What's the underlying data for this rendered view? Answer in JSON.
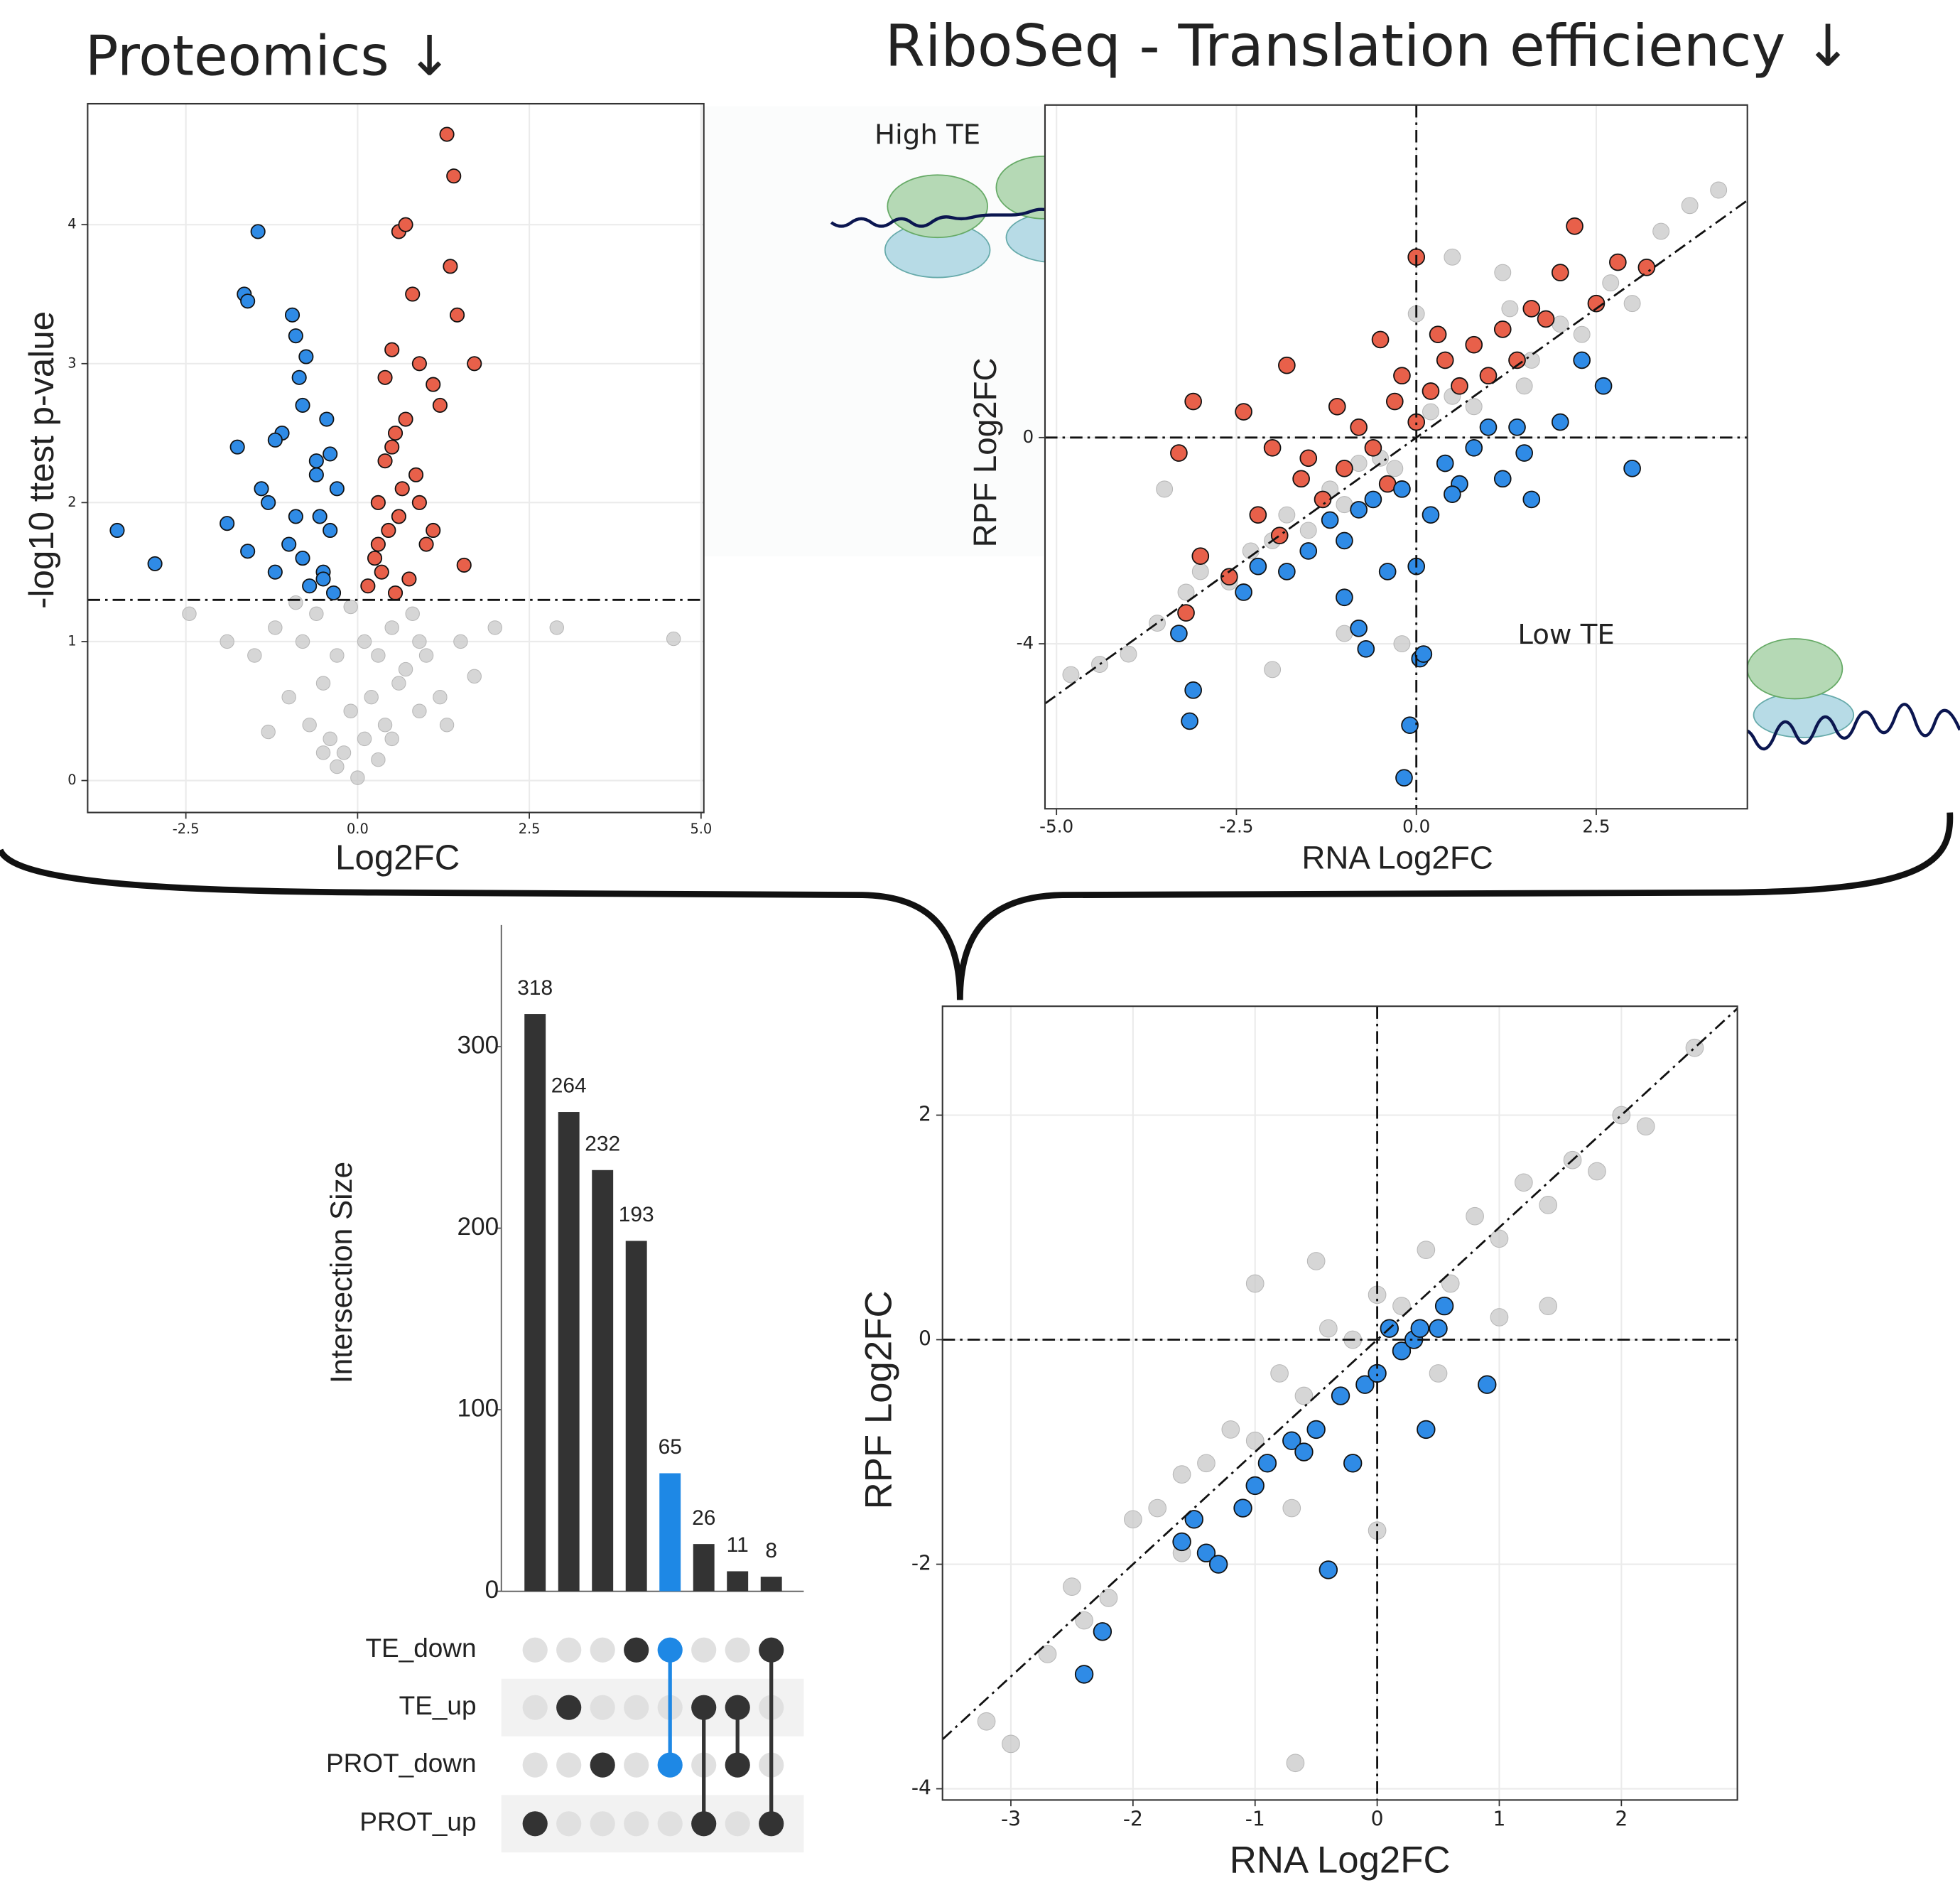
{
  "chart_data": [
    {
      "type": "scatter",
      "title": "Proteomics ↓",
      "x_label": "Log2FC",
      "y_label": "-log10 ttest p-value",
      "xlim": [
        -3.93,
        5.04
      ],
      "ylim": [
        -0.23,
        4.87
      ],
      "xticks": [
        -2.5,
        {
          "value": 0,
          "label": "0.0"
        },
        2.5,
        {
          "value": 5,
          "label": "5.0"
        }
      ],
      "yticks": [
        0,
        1,
        2,
        3,
        4
      ],
      "grid": true,
      "hline": 1.3,
      "series": [
        {
          "color": "#c8c8c8",
          "x": [
            -2.45,
            -1.9,
            -1.5,
            -1.2,
            -1.0,
            -0.8,
            -0.7,
            -0.6,
            -0.5,
            -0.4,
            -0.3,
            -0.2,
            -0.1,
            0,
            0.1,
            0.2,
            0.3,
            0.4,
            0.5,
            0.6,
            0.7,
            0.8,
            0.9,
            1.0,
            1.2,
            1.5,
            1.7,
            2.0,
            2.9,
            4.6,
            -0.5,
            -0.3,
            -0.1,
            0.1,
            0.3,
            0.5,
            -0.9,
            0.9,
            -1.3,
            1.3
          ],
          "values": [
            1.2,
            1.0,
            0.9,
            1.1,
            0.6,
            1.0,
            0.4,
            1.2,
            0.7,
            0.3,
            0.9,
            0.2,
            0.5,
            0.02,
            0.3,
            0.6,
            0.9,
            0.4,
            1.1,
            0.7,
            0.8,
            1.2,
            0.5,
            0.9,
            0.6,
            1.0,
            0.75,
            1.1,
            1.1,
            1.02,
            0.2,
            0.1,
            1.25,
            1.0,
            0.15,
            0.3,
            1.28,
            1.0,
            0.35,
            0.4
          ]
        },
        {
          "color": "#2f8be6",
          "x": [
            -3.5,
            -2.95,
            -1.9,
            -1.75,
            -1.65,
            -1.6,
            -1.45,
            -1.4,
            -1.3,
            -1.2,
            -1.1,
            -1.0,
            -0.95,
            -0.9,
            -0.85,
            -0.8,
            -0.75,
            -0.7,
            -0.6,
            -0.55,
            -0.5,
            -0.45,
            -0.4,
            -0.35,
            -0.3,
            -0.9,
            -1.2,
            -0.6,
            -0.8,
            -0.5,
            -1.6,
            -0.4
          ],
          "values": [
            1.8,
            1.56,
            1.85,
            2.4,
            3.5,
            3.45,
            3.95,
            2.1,
            2.0,
            1.5,
            2.5,
            1.7,
            3.35,
            3.2,
            2.9,
            2.7,
            3.05,
            1.4,
            2.3,
            1.9,
            1.5,
            2.6,
            1.8,
            1.35,
            2.1,
            1.9,
            2.45,
            2.2,
            1.6,
            1.45,
            1.65,
            2.35
          ]
        },
        {
          "color": "#e8604a",
          "x": [
            0.15,
            0.25,
            0.3,
            0.35,
            0.4,
            0.45,
            0.5,
            0.55,
            0.6,
            0.65,
            0.7,
            0.75,
            0.8,
            0.85,
            0.9,
            1.0,
            1.1,
            1.2,
            1.3,
            1.35,
            1.4,
            1.45,
            1.55,
            1.7,
            0.5,
            0.6,
            0.4,
            0.7,
            0.3,
            0.55,
            0.9,
            1.1
          ],
          "values": [
            1.4,
            1.6,
            2.0,
            1.5,
            2.3,
            1.8,
            3.1,
            2.5,
            3.95,
            2.1,
            4.0,
            1.45,
            3.5,
            2.2,
            3.0,
            1.7,
            2.85,
            2.7,
            4.65,
            3.7,
            4.35,
            3.35,
            1.55,
            3.0,
            2.4,
            1.9,
            2.9,
            2.6,
            1.7,
            1.35,
            2.0,
            1.8
          ]
        }
      ]
    },
    {
      "type": "scatter",
      "title": "RiboSeq - Translation efficiency ↓",
      "x_label": "RNA Log2FC",
      "y_label": "RPF Log2FC",
      "annotations": [
        "High TE",
        "Low TE"
      ],
      "xlim": [
        -5.16,
        4.6
      ],
      "ylim": [
        -7.2,
        6.45
      ],
      "xticks": [
        {
          "value": -5,
          "label": "-5.0"
        },
        -2.5,
        {
          "value": 0,
          "label": "0.0"
        },
        2.5
      ],
      "yticks": [
        -4,
        0
      ],
      "grid": true,
      "hline": 0,
      "vline": 0,
      "diagonal": true,
      "series": [
        {
          "color": "#c8c8c8",
          "x": [
            -4.8,
            -4.4,
            -4.0,
            -3.6,
            -3.2,
            -3.0,
            -2.6,
            -2.3,
            -2.0,
            -1.8,
            -1.5,
            -1.2,
            -1.0,
            -0.8,
            -0.5,
            -0.3,
            0,
            0.2,
            0.5,
            0.8,
            1.0,
            1.3,
            1.6,
            2.0,
            2.3,
            2.7,
            3.0,
            3.4,
            3.8,
            4.2,
            -2.0,
            -1.0,
            0.5,
            1.5,
            2.5,
            -3.5,
            -0.2,
            1.2
          ],
          "values": [
            -4.6,
            -4.4,
            -4.2,
            -3.6,
            -3.0,
            -2.6,
            -2.8,
            -2.2,
            -2.0,
            -1.5,
            -1.8,
            -1.0,
            -1.3,
            -0.5,
            -0.4,
            -0.6,
            2.4,
            0.5,
            0.8,
            0.6,
            1.2,
            2.5,
            1.5,
            2.2,
            2.0,
            3.0,
            2.6,
            4.0,
            4.5,
            4.8,
            -4.5,
            -3.8,
            3.5,
            1.0,
            2.6,
            -1.0,
            -4.0,
            3.2
          ]
        },
        {
          "color": "#e8604a",
          "x": [
            -3.1,
            -3.2,
            -3.0,
            -2.6,
            -2.4,
            -2.2,
            -2.0,
            -1.8,
            -1.6,
            -1.5,
            -1.3,
            -1.1,
            -1.0,
            -0.8,
            -0.6,
            -0.5,
            -0.3,
            -0.2,
            0,
            0.2,
            0.4,
            0.6,
            0.8,
            1.0,
            1.2,
            1.4,
            1.6,
            1.8,
            2.0,
            2.2,
            2.5,
            2.8,
            3.2,
            0,
            -0.4,
            0.3,
            -1.9,
            -3.3
          ],
          "values": [
            0.7,
            -3.4,
            -2.3,
            -2.7,
            0.5,
            -1.5,
            -0.2,
            1.4,
            -0.8,
            -0.4,
            -1.2,
            0.6,
            -0.6,
            0.2,
            -0.2,
            1.9,
            0.7,
            1.2,
            3.5,
            0.9,
            1.5,
            1.0,
            1.8,
            1.2,
            2.1,
            1.5,
            2.5,
            2.3,
            3.2,
            4.1,
            2.6,
            3.4,
            3.3,
            0.3,
            -0.9,
            2.0,
            -1.9,
            -0.3
          ]
        },
        {
          "color": "#2f8be6",
          "x": [
            -3.15,
            -3.1,
            -3.3,
            -2.4,
            -2.2,
            -1.8,
            -1.5,
            -1.2,
            -1.0,
            -0.8,
            -0.6,
            -0.4,
            -0.2,
            0,
            0.2,
            0.4,
            0.6,
            0.8,
            1.0,
            1.2,
            1.4,
            1.6,
            2.0,
            2.3,
            2.6,
            3.0,
            -0.17,
            -0.09,
            0.05,
            -0.7,
            -0.8,
            1.5,
            0.5,
            -1.0,
            0.1
          ],
          "values": [
            -5.5,
            -4.9,
            -3.8,
            -3.0,
            -2.5,
            -2.6,
            -2.2,
            -1.6,
            -2.0,
            -1.4,
            -1.2,
            -2.6,
            -1.0,
            -2.5,
            -1.5,
            -0.5,
            -0.9,
            -0.2,
            0.2,
            -0.8,
            0.2,
            -1.2,
            0.3,
            1.5,
            1.0,
            -0.6,
            -6.6,
            -5.58,
            -4.29,
            -4.1,
            -3.7,
            -0.3,
            -1.1,
            -3.1,
            -4.2
          ]
        }
      ]
    },
    {
      "type": "upset",
      "y_label": "Intersection Size",
      "values": [
        318,
        264,
        232,
        193,
        65,
        26,
        11,
        8
      ],
      "ylim": [
        0,
        367
      ],
      "yticks": [
        0,
        100,
        200,
        300
      ],
      "color": "#333333",
      "highlight": 4,
      "highlight_color": "#1e88e5",
      "sets": [
        "TE_down",
        "TE_up",
        "PROT_down",
        "PROT_up"
      ],
      "membership": [
        [
          3
        ],
        [
          1
        ],
        [
          2
        ],
        [
          0
        ],
        [
          0,
          2
        ],
        [
          1,
          3
        ],
        [
          1,
          2
        ],
        [
          0,
          3
        ]
      ]
    },
    {
      "type": "scatter",
      "x_label": "RNA Log2FC",
      "y_label": "RPF Log2FC",
      "xlim": [
        -3.56,
        2.95
      ],
      "ylim": [
        -4.1,
        2.97
      ],
      "xticks": [
        -3,
        -2,
        -1,
        0,
        1,
        2
      ],
      "yticks": [
        -4,
        -2,
        0,
        2
      ],
      "grid": true,
      "hline": 0,
      "vline": 0,
      "diagonal": true,
      "series": [
        {
          "color": "#c8c8c8",
          "x": [
            -3.2,
            -3.0,
            -2.7,
            -2.5,
            -2.2,
            -2.0,
            -1.8,
            -1.6,
            -1.4,
            -1.2,
            -1.0,
            -0.8,
            -0.6,
            -0.4,
            -0.2,
            0,
            0.2,
            0.4,
            0.6,
            0.8,
            1.0,
            1.2,
            1.4,
            1.6,
            1.8,
            2.0,
            2.2,
            2.6,
            -1.6,
            -0.7,
            0,
            1.4,
            -1.0,
            0.5,
            -0.5,
            1.0,
            -2.4,
            -0.67
          ],
          "values": [
            -3.4,
            -3.6,
            -2.8,
            -2.2,
            -2.3,
            -1.6,
            -1.5,
            -1.2,
            -1.1,
            -0.8,
            -0.9,
            -0.3,
            -0.5,
            0.1,
            0.0,
            0.4,
            0.3,
            0.8,
            0.5,
            1.1,
            0.9,
            1.4,
            1.2,
            1.6,
            1.5,
            2.0,
            1.9,
            2.6,
            -1.9,
            -1.5,
            -1.7,
            0.3,
            0.5,
            -0.3,
            0.7,
            0.2,
            -2.5,
            -3.77
          ]
        },
        {
          "color": "#2f8be6",
          "x": [
            -2.4,
            -2.25,
            -1.6,
            -1.4,
            -1.3,
            -1.1,
            -1.0,
            -0.9,
            -0.7,
            -0.5,
            -0.3,
            -0.2,
            -0.1,
            0,
            0.1,
            0.2,
            0.3,
            0.4,
            0.5,
            0.55,
            0.9,
            -0.4,
            0.35,
            -1.5,
            -0.6
          ],
          "values": [
            -2.98,
            -2.6,
            -1.8,
            -1.9,
            -2.0,
            -1.5,
            -1.3,
            -1.1,
            -0.9,
            -0.8,
            -0.5,
            -1.1,
            -0.4,
            -0.3,
            0.1,
            -0.1,
            0.0,
            -0.8,
            0.1,
            0.3,
            -0.4,
            -2.05,
            0.1,
            -1.6,
            -1.0
          ]
        }
      ]
    }
  ]
}
